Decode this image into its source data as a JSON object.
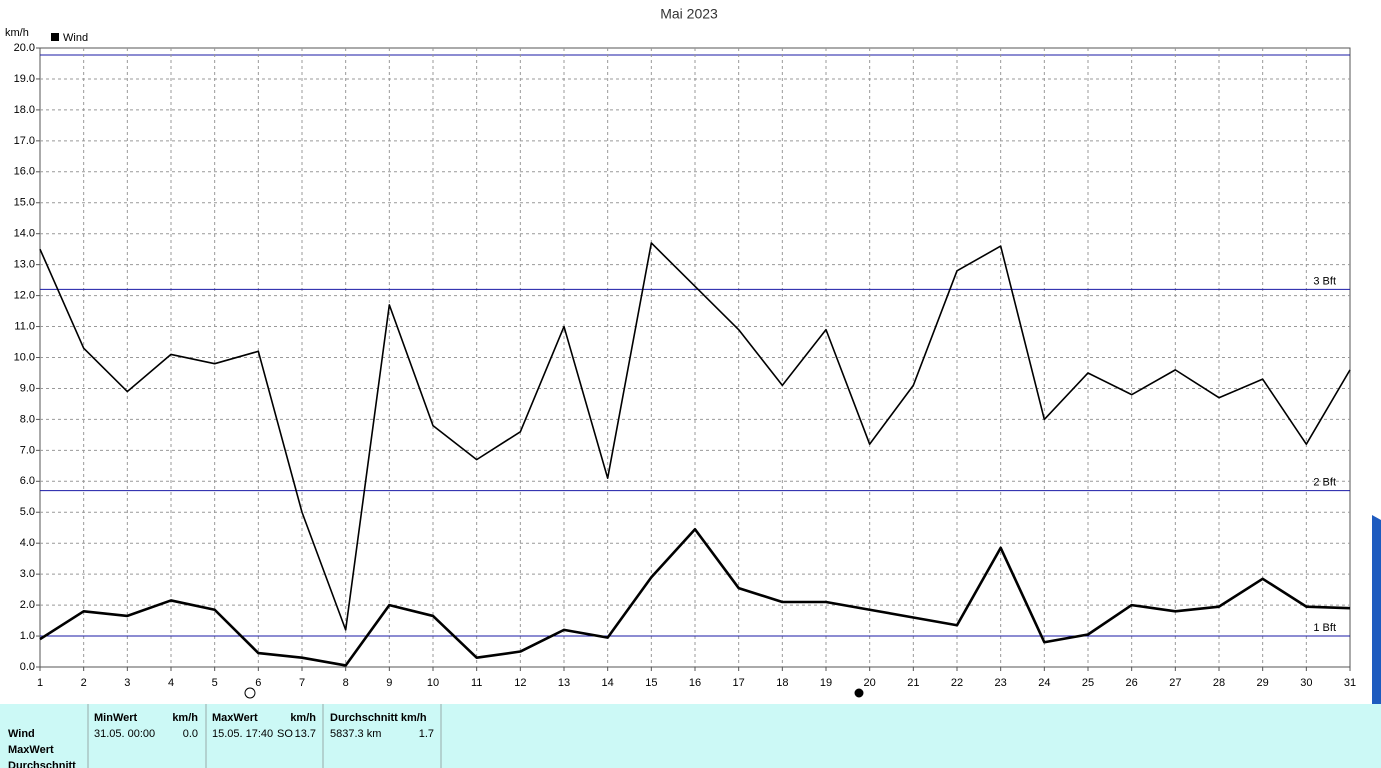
{
  "chart_data": {
    "type": "line",
    "title": "Mai 2023",
    "y_label": "km/h",
    "legend": "Wind",
    "x": [
      1,
      2,
      3,
      4,
      5,
      6,
      7,
      8,
      9,
      10,
      11,
      12,
      13,
      14,
      15,
      16,
      17,
      18,
      19,
      20,
      21,
      22,
      23,
      24,
      25,
      26,
      27,
      28,
      29,
      30,
      31
    ],
    "xlim": [
      1,
      31
    ],
    "xticks": [
      1,
      2,
      3,
      4,
      5,
      6,
      7,
      8,
      9,
      10,
      11,
      12,
      13,
      14,
      15,
      16,
      17,
      18,
      19,
      20,
      21,
      22,
      23,
      24,
      25,
      26,
      27,
      28,
      29,
      30,
      31
    ],
    "ylim": [
      0,
      20
    ],
    "yticks": [
      {
        "value": 0,
        "label": "0.0"
      },
      {
        "value": 1,
        "label": "1.0"
      },
      {
        "value": 2,
        "label": "2.0"
      },
      {
        "value": 3,
        "label": "3.0"
      },
      {
        "value": 4,
        "label": "4.0"
      },
      {
        "value": 5,
        "label": "5.0"
      },
      {
        "value": 6,
        "label": "6.0"
      },
      {
        "value": 7,
        "label": "7.0"
      },
      {
        "value": 8,
        "label": "8.0"
      },
      {
        "value": 9,
        "label": "9.0"
      },
      {
        "value": 10,
        "label": "10.0"
      },
      {
        "value": 11,
        "label": "11.0"
      },
      {
        "value": 12,
        "label": "12.0"
      },
      {
        "value": 13,
        "label": "13.0"
      },
      {
        "value": 14,
        "label": "14.0"
      },
      {
        "value": 15,
        "label": "15.0"
      },
      {
        "value": 16,
        "label": "16.0"
      },
      {
        "value": 17,
        "label": "17.0"
      },
      {
        "value": 18,
        "label": "18.0"
      },
      {
        "value": 19,
        "label": "19.0"
      },
      {
        "value": 20,
        "label": "20.0"
      }
    ],
    "grid": true,
    "series": [
      {
        "color": "#000000",
        "width": 1.6,
        "values": [
          13.5,
          10.3,
          8.9,
          10.1,
          9.8,
          10.2,
          5.0,
          1.2,
          11.7,
          7.8,
          6.7,
          7.6,
          11.0,
          6.1,
          13.7,
          12.3,
          10.9,
          9.1,
          10.9,
          7.2,
          9.1,
          12.8,
          13.6,
          8.0,
          9.5,
          8.8,
          9.6,
          8.7,
          9.3,
          7.2,
          9.6
        ]
      },
      {
        "color": "#000000",
        "width": 2.6,
        "values": [
          0.9,
          1.8,
          1.65,
          2.15,
          1.85,
          0.45,
          0.3,
          0.05,
          2.0,
          1.65,
          0.3,
          0.5,
          1.2,
          0.95,
          2.9,
          4.45,
          2.55,
          2.1,
          2.1,
          1.85,
          1.6,
          1.35,
          3.85,
          0.8,
          1.05,
          2.0,
          1.8,
          1.95,
          2.85,
          1.95,
          1.9
        ]
      }
    ],
    "reference_lines": [
      {
        "value": 12.2,
        "label": "3 Bft",
        "color": "#1a1aa6"
      },
      {
        "value": 5.7,
        "label": "2 Bft",
        "color": "#1a1aa6"
      },
      {
        "value": 1.0,
        "label": "1 Bft",
        "color": "#1a1aa6"
      }
    ]
  },
  "table": {
    "row_labels": [
      "Wind",
      "MaxWert",
      "Durchschnitt"
    ],
    "columns": [
      {
        "title": "MinWert",
        "unit": "km/h",
        "cells": [
          "31.05.  00:00",
          "0.0"
        ]
      },
      {
        "title": "MaxWert",
        "unit": "km/h",
        "cells": [
          "15.05.  17:40",
          "SO",
          "13.7"
        ]
      },
      {
        "title": "Durchschnitt km/h",
        "cells": [
          "5837.3 km",
          "1.7"
        ]
      }
    ]
  }
}
